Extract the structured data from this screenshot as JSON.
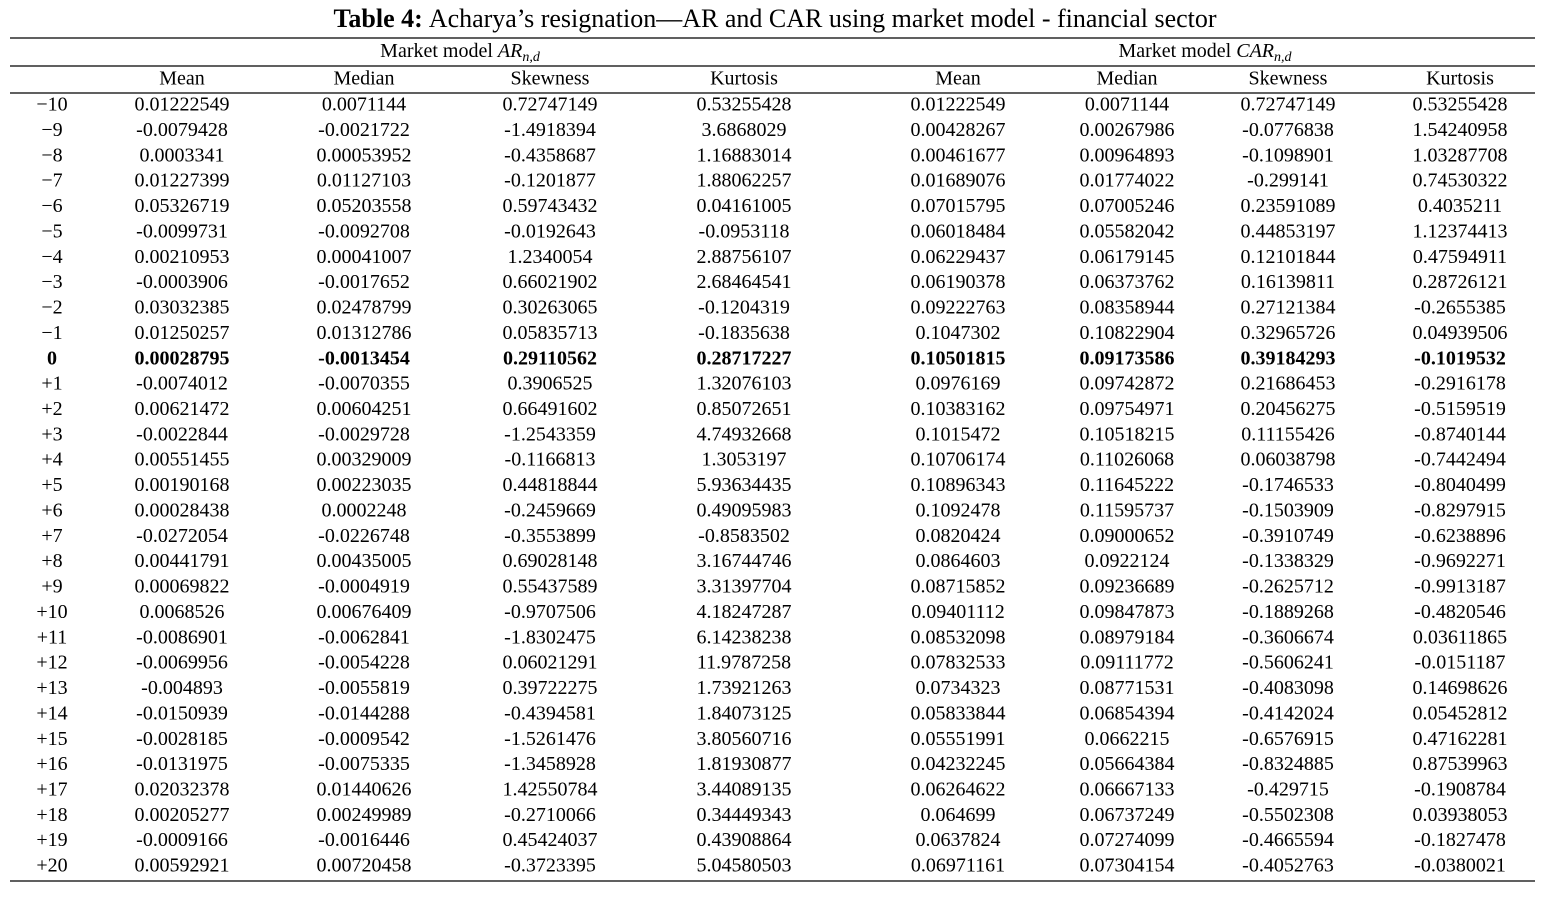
{
  "table": {
    "title": {
      "label": "Table 4:",
      "text": "Acharya’s resignation—AR and CAR using market model - financial sector"
    },
    "groups": [
      {
        "prefix": "Market model",
        "symbol": "AR",
        "subscript": "n,d"
      },
      {
        "prefix": "Market model",
        "symbol": "CAR",
        "subscript": "n,d"
      }
    ],
    "columns": [
      "Mean",
      "Median",
      "Skewness",
      "Kurtosis",
      "Mean",
      "Median",
      "Skewness",
      "Kurtosis"
    ],
    "rows": [
      {
        "label": "−10",
        "values": [
          "0.01222549",
          "0.0071144",
          "0.72747149",
          "0.53255428",
          "0.01222549",
          "0.0071144",
          "0.72747149",
          "0.53255428"
        ]
      },
      {
        "label": "−9",
        "values": [
          "-0.0079428",
          "-0.0021722",
          "-1.4918394",
          "3.6868029",
          "0.00428267",
          "0.00267986",
          "-0.0776838",
          "1.54240958"
        ]
      },
      {
        "label": "−8",
        "values": [
          "0.0003341",
          "0.00053952",
          "-0.4358687",
          "1.16883014",
          "0.00461677",
          "0.00964893",
          "-0.1098901",
          "1.03287708"
        ]
      },
      {
        "label": "−7",
        "values": [
          "0.01227399",
          "0.01127103",
          "-0.1201877",
          "1.88062257",
          "0.01689076",
          "0.01774022",
          "-0.299141",
          "0.74530322"
        ]
      },
      {
        "label": "−6",
        "values": [
          "0.05326719",
          "0.05203558",
          "0.59743432",
          "0.04161005",
          "0.07015795",
          "0.07005246",
          "0.23591089",
          "0.4035211"
        ]
      },
      {
        "label": "−5",
        "values": [
          "-0.0099731",
          "-0.0092708",
          "-0.0192643",
          "-0.0953118",
          "0.06018484",
          "0.05582042",
          "0.44853197",
          "1.12374413"
        ]
      },
      {
        "label": "−4",
        "values": [
          "0.00210953",
          "0.00041007",
          "1.2340054",
          "2.88756107",
          "0.06229437",
          "0.06179145",
          "0.12101844",
          "0.47594911"
        ]
      },
      {
        "label": "−3",
        "values": [
          "-0.0003906",
          "-0.0017652",
          "0.66021902",
          "2.68464541",
          "0.06190378",
          "0.06373762",
          "0.16139811",
          "0.28726121"
        ]
      },
      {
        "label": "−2",
        "values": [
          "0.03032385",
          "0.02478799",
          "0.30263065",
          "-0.1204319",
          "0.09222763",
          "0.08358944",
          "0.27121384",
          "-0.2655385"
        ]
      },
      {
        "label": "−1",
        "values": [
          "0.01250257",
          "0.01312786",
          "0.05835713",
          "-0.1835638",
          "0.1047302",
          "0.10822904",
          "0.32965726",
          "0.04939506"
        ]
      },
      {
        "label": "0",
        "bold": true,
        "values": [
          "0.00028795",
          "-0.0013454",
          "0.29110562",
          "0.28717227",
          "0.10501815",
          "0.09173586",
          "0.39184293",
          "-0.1019532"
        ]
      },
      {
        "label": "+1",
        "values": [
          "-0.0074012",
          "-0.0070355",
          "0.3906525",
          "1.32076103",
          "0.0976169",
          "0.09742872",
          "0.21686453",
          "-0.2916178"
        ]
      },
      {
        "label": "+2",
        "values": [
          "0.00621472",
          "0.00604251",
          "0.66491602",
          "0.85072651",
          "0.10383162",
          "0.09754971",
          "0.20456275",
          "-0.5159519"
        ]
      },
      {
        "label": "+3",
        "values": [
          "-0.0022844",
          "-0.0029728",
          "-1.2543359",
          "4.74932668",
          "0.1015472",
          "0.10518215",
          "0.11155426",
          "-0.8740144"
        ]
      },
      {
        "label": "+4",
        "values": [
          "0.00551455",
          "0.00329009",
          "-0.1166813",
          "1.3053197",
          "0.10706174",
          "0.11026068",
          "0.06038798",
          "-0.7442494"
        ]
      },
      {
        "label": "+5",
        "values": [
          "0.00190168",
          "0.00223035",
          "0.44818844",
          "5.93634435",
          "0.10896343",
          "0.11645222",
          "-0.1746533",
          "-0.8040499"
        ]
      },
      {
        "label": "+6",
        "values": [
          "0.00028438",
          "0.0002248",
          "-0.2459669",
          "0.49095983",
          "0.1092478",
          "0.11595737",
          "-0.1503909",
          "-0.8297915"
        ]
      },
      {
        "label": "+7",
        "values": [
          "-0.0272054",
          "-0.0226748",
          "-0.3553899",
          "-0.8583502",
          "0.0820424",
          "0.09000652",
          "-0.3910749",
          "-0.6238896"
        ]
      },
      {
        "label": "+8",
        "values": [
          "0.00441791",
          "0.00435005",
          "0.69028148",
          "3.16744746",
          "0.0864603",
          "0.0922124",
          "-0.1338329",
          "-0.9692271"
        ]
      },
      {
        "label": "+9",
        "values": [
          "0.00069822",
          "-0.0004919",
          "0.55437589",
          "3.31397704",
          "0.08715852",
          "0.09236689",
          "-0.2625712",
          "-0.9913187"
        ]
      },
      {
        "label": "+10",
        "values": [
          "0.0068526",
          "0.00676409",
          "-0.9707506",
          "4.18247287",
          "0.09401112",
          "0.09847873",
          "-0.1889268",
          "-0.4820546"
        ]
      },
      {
        "label": "+11",
        "values": [
          "-0.0086901",
          "-0.0062841",
          "-1.8302475",
          "6.14238238",
          "0.08532098",
          "0.08979184",
          "-0.3606674",
          "0.03611865"
        ]
      },
      {
        "label": "+12",
        "values": [
          "-0.0069956",
          "-0.0054228",
          "0.06021291",
          "11.9787258",
          "0.07832533",
          "0.09111772",
          "-0.5606241",
          "-0.0151187"
        ]
      },
      {
        "label": "+13",
        "values": [
          "-0.004893",
          "-0.0055819",
          "0.39722275",
          "1.73921263",
          "0.0734323",
          "0.08771531",
          "-0.4083098",
          "0.14698626"
        ]
      },
      {
        "label": "+14",
        "values": [
          "-0.0150939",
          "-0.0144288",
          "-0.4394581",
          "1.84073125",
          "0.05833844",
          "0.06854394",
          "-0.4142024",
          "0.05452812"
        ]
      },
      {
        "label": "+15",
        "values": [
          "-0.0028185",
          "-0.0009542",
          "-1.5261476",
          "3.80560716",
          "0.05551991",
          "0.0662215",
          "-0.6576915",
          "0.47162281"
        ]
      },
      {
        "label": "+16",
        "values": [
          "-0.0131975",
          "-0.0075335",
          "-1.3458928",
          "1.81930877",
          "0.04232245",
          "0.05664384",
          "-0.8324885",
          "0.87539963"
        ]
      },
      {
        "label": "+17",
        "values": [
          "0.02032378",
          "0.01440626",
          "1.42550784",
          "3.44089135",
          "0.06264622",
          "0.06667133",
          "-0.429715",
          "-0.1908784"
        ]
      },
      {
        "label": "+18",
        "values": [
          "0.00205277",
          "0.00249989",
          "-0.2710066",
          "0.34449343",
          "0.064699",
          "0.06737249",
          "-0.5502308",
          "0.03938053"
        ]
      },
      {
        "label": "+19",
        "values": [
          "-0.0009166",
          "-0.0016446",
          "0.45424037",
          "0.43908864",
          "0.0637824",
          "0.07274099",
          "-0.4665594",
          "-0.1827478"
        ]
      },
      {
        "label": "+20",
        "values": [
          "0.00592921",
          "0.00720458",
          "-0.3723395",
          "5.04580503",
          "0.06971161",
          "0.07304154",
          "-0.4052763",
          "-0.0380021"
        ]
      }
    ]
  }
}
